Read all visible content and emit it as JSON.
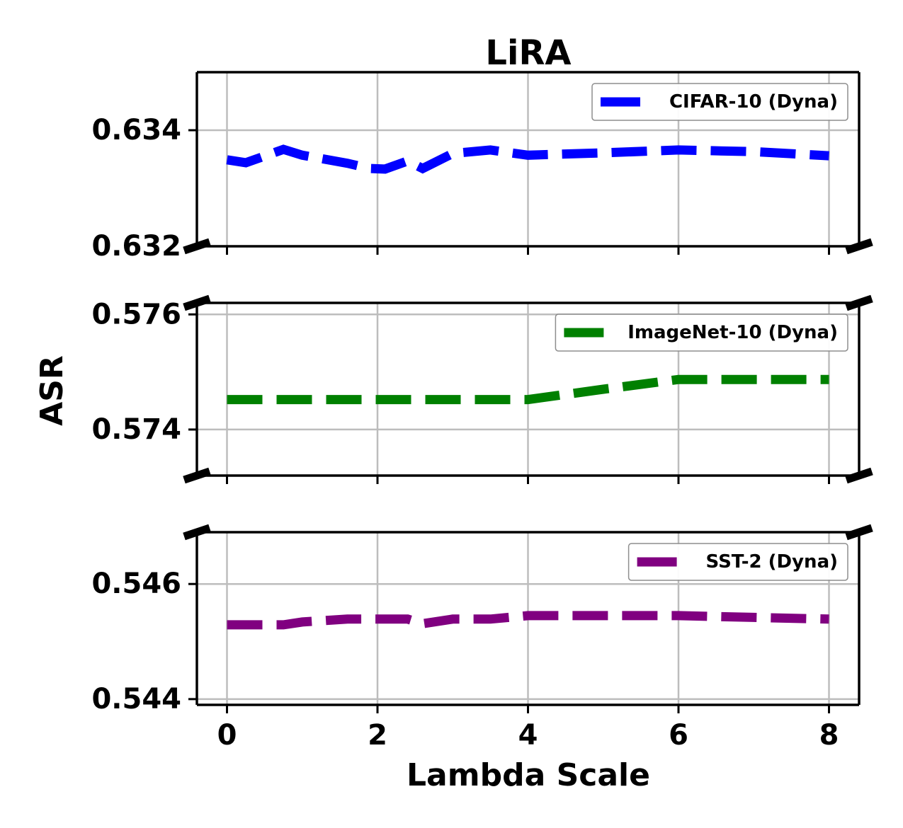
{
  "chart_data": {
    "type": "line",
    "title": "LiRA",
    "xlabel": "Lambda Scale",
    "ylabel": "ASR",
    "xlim": [
      -0.4,
      8.4
    ],
    "xticks": [
      "0",
      "2",
      "4",
      "6",
      "8"
    ],
    "grid": true,
    "x": [
      0,
      0.25,
      0.75,
      1,
      1.6,
      1.9,
      2.1,
      2.4,
      2.6,
      3,
      3.5,
      4,
      5,
      6,
      7,
      8
    ],
    "panels": [
      {
        "name": "CIFAR-10 (Dyna)",
        "color": "#0000ff",
        "ylim": [
          0.632,
          0.635
        ],
        "yticks": [
          "0.632",
          "0.634"
        ],
        "legend_position": "upper-right",
        "values": [
          0.63349,
          0.63344,
          0.63367,
          0.63357,
          0.63343,
          0.63334,
          0.63333,
          0.63347,
          0.63334,
          0.6336,
          0.63366,
          0.63357,
          0.63361,
          0.63366,
          0.63363,
          0.63356
        ]
      },
      {
        "name": "ImageNet-10 (Dyna)",
        "color": "#008000",
        "ylim": [
          0.5732,
          0.5762
        ],
        "yticks": [
          "0.574",
          "0.576"
        ],
        "legend_position": "upper-right",
        "values": [
          0.57452,
          0.57452,
          0.57452,
          0.57452,
          0.57452,
          0.57452,
          0.57452,
          0.57452,
          0.57452,
          0.57452,
          0.57452,
          0.57452,
          0.5747,
          0.57487,
          0.57487,
          0.57487
        ]
      },
      {
        "name": "SST-2 (Dyna)",
        "color": "#800080",
        "ylim": [
          0.5439,
          0.5469
        ],
        "yticks": [
          "0.544",
          "0.546"
        ],
        "legend_position": "upper-right",
        "values": [
          0.54529,
          0.54529,
          0.54529,
          0.54534,
          0.54539,
          0.54539,
          0.54539,
          0.54539,
          0.54531,
          0.54539,
          0.54539,
          0.54545,
          0.54545,
          0.54545,
          0.54542,
          0.54539
        ]
      }
    ]
  }
}
